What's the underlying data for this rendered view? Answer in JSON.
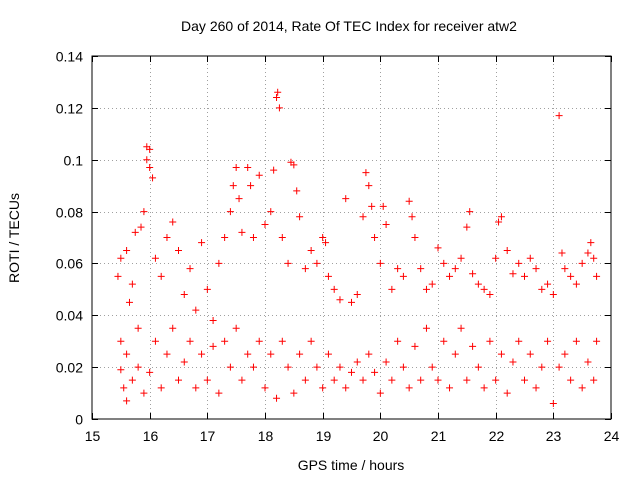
{
  "chart_data": {
    "type": "scatter",
    "title": "Day 260 of 2014, Rate Of TEC Index for receiver atw2",
    "xlabel": "GPS time / hours",
    "ylabel": "ROTI / TECUs",
    "xlim": [
      15,
      24
    ],
    "ylim": [
      0,
      0.14
    ],
    "x_ticks": [
      "15",
      "16",
      "17",
      "18",
      "19",
      "20",
      "21",
      "22",
      "23",
      "24"
    ],
    "y_ticks": [
      "0",
      "0.02",
      "0.04",
      "0.06",
      "0.08",
      "0.1",
      "0.12",
      "0.14"
    ],
    "grid": true,
    "marker": "+",
    "color": "#ff0000",
    "series": [
      {
        "name": "ROTI",
        "points": [
          [
            15.45,
            0.055
          ],
          [
            15.5,
            0.062
          ],
          [
            15.5,
            0.019
          ],
          [
            15.55,
            0.012
          ],
          [
            15.6,
            0.007
          ],
          [
            15.6,
            0.065
          ],
          [
            15.65,
            0.045
          ],
          [
            15.7,
            0.052
          ],
          [
            15.75,
            0.072
          ],
          [
            15.8,
            0.035
          ],
          [
            15.85,
            0.074
          ],
          [
            15.9,
            0.08
          ],
          [
            15.95,
            0.105
          ],
          [
            15.95,
            0.1
          ],
          [
            16.0,
            0.104
          ],
          [
            16.0,
            0.097
          ],
          [
            16.05,
            0.093
          ],
          [
            16.1,
            0.062
          ],
          [
            16.2,
            0.055
          ],
          [
            16.3,
            0.07
          ],
          [
            16.4,
            0.076
          ],
          [
            16.5,
            0.065
          ],
          [
            16.6,
            0.048
          ],
          [
            16.7,
            0.058
          ],
          [
            16.8,
            0.042
          ],
          [
            16.9,
            0.068
          ],
          [
            17.0,
            0.05
          ],
          [
            17.1,
            0.038
          ],
          [
            17.2,
            0.06
          ],
          [
            17.3,
            0.07
          ],
          [
            17.4,
            0.08
          ],
          [
            17.45,
            0.09
          ],
          [
            17.5,
            0.097
          ],
          [
            17.55,
            0.085
          ],
          [
            17.6,
            0.072
          ],
          [
            17.7,
            0.097
          ],
          [
            17.75,
            0.09
          ],
          [
            17.8,
            0.07
          ],
          [
            17.9,
            0.094
          ],
          [
            18.0,
            0.075
          ],
          [
            18.1,
            0.08
          ],
          [
            18.15,
            0.096
          ],
          [
            18.2,
            0.124
          ],
          [
            18.22,
            0.126
          ],
          [
            18.25,
            0.12
          ],
          [
            18.3,
            0.07
          ],
          [
            18.4,
            0.06
          ],
          [
            18.45,
            0.099
          ],
          [
            18.5,
            0.098
          ],
          [
            18.55,
            0.088
          ],
          [
            18.6,
            0.078
          ],
          [
            18.7,
            0.058
          ],
          [
            18.8,
            0.065
          ],
          [
            18.9,
            0.06
          ],
          [
            19.0,
            0.07
          ],
          [
            19.05,
            0.068
          ],
          [
            19.1,
            0.055
          ],
          [
            19.2,
            0.05
          ],
          [
            19.3,
            0.046
          ],
          [
            19.4,
            0.085
          ],
          [
            19.5,
            0.045
          ],
          [
            19.6,
            0.048
          ],
          [
            19.7,
            0.078
          ],
          [
            19.75,
            0.095
          ],
          [
            19.8,
            0.09
          ],
          [
            19.85,
            0.082
          ],
          [
            19.9,
            0.07
          ],
          [
            20.0,
            0.06
          ],
          [
            20.05,
            0.082
          ],
          [
            20.1,
            0.075
          ],
          [
            20.2,
            0.05
          ],
          [
            20.3,
            0.058
          ],
          [
            20.4,
            0.055
          ],
          [
            20.5,
            0.084
          ],
          [
            20.55,
            0.078
          ],
          [
            20.6,
            0.07
          ],
          [
            20.7,
            0.058
          ],
          [
            20.8,
            0.05
          ],
          [
            20.9,
            0.052
          ],
          [
            21.0,
            0.066
          ],
          [
            21.1,
            0.06
          ],
          [
            21.2,
            0.055
          ],
          [
            21.3,
            0.058
          ],
          [
            21.4,
            0.062
          ],
          [
            21.5,
            0.074
          ],
          [
            21.55,
            0.08
          ],
          [
            21.6,
            0.056
          ],
          [
            21.7,
            0.052
          ],
          [
            21.8,
            0.05
          ],
          [
            21.9,
            0.048
          ],
          [
            22.0,
            0.062
          ],
          [
            22.05,
            0.076
          ],
          [
            22.1,
            0.078
          ],
          [
            22.2,
            0.065
          ],
          [
            22.3,
            0.056
          ],
          [
            22.4,
            0.06
          ],
          [
            22.5,
            0.055
          ],
          [
            22.6,
            0.062
          ],
          [
            22.7,
            0.058
          ],
          [
            22.8,
            0.05
          ],
          [
            22.9,
            0.052
          ],
          [
            23.0,
            0.048
          ],
          [
            23.1,
            0.117
          ],
          [
            23.15,
            0.064
          ],
          [
            23.2,
            0.058
          ],
          [
            23.3,
            0.055
          ],
          [
            23.4,
            0.052
          ],
          [
            23.5,
            0.06
          ],
          [
            23.6,
            0.064
          ],
          [
            23.65,
            0.068
          ],
          [
            23.7,
            0.062
          ],
          [
            23.75,
            0.055
          ],
          [
            15.5,
            0.03
          ],
          [
            15.6,
            0.025
          ],
          [
            15.7,
            0.015
          ],
          [
            15.8,
            0.02
          ],
          [
            15.9,
            0.01
          ],
          [
            16.0,
            0.018
          ],
          [
            16.1,
            0.03
          ],
          [
            16.2,
            0.012
          ],
          [
            16.3,
            0.025
          ],
          [
            16.4,
            0.035
          ],
          [
            16.5,
            0.015
          ],
          [
            16.6,
            0.022
          ],
          [
            16.7,
            0.03
          ],
          [
            16.8,
            0.012
          ],
          [
            16.9,
            0.025
          ],
          [
            17.0,
            0.015
          ],
          [
            17.1,
            0.028
          ],
          [
            17.2,
            0.01
          ],
          [
            17.3,
            0.03
          ],
          [
            17.4,
            0.02
          ],
          [
            17.5,
            0.035
          ],
          [
            17.6,
            0.015
          ],
          [
            17.7,
            0.025
          ],
          [
            17.8,
            0.02
          ],
          [
            17.9,
            0.03
          ],
          [
            18.0,
            0.012
          ],
          [
            18.1,
            0.025
          ],
          [
            18.2,
            0.008
          ],
          [
            18.3,
            0.03
          ],
          [
            18.4,
            0.02
          ],
          [
            18.5,
            0.01
          ],
          [
            18.6,
            0.025
          ],
          [
            18.7,
            0.015
          ],
          [
            18.8,
            0.03
          ],
          [
            18.9,
            0.02
          ],
          [
            19.0,
            0.012
          ],
          [
            19.1,
            0.025
          ],
          [
            19.2,
            0.015
          ],
          [
            19.3,
            0.02
          ],
          [
            19.4,
            0.012
          ],
          [
            19.5,
            0.018
          ],
          [
            19.6,
            0.022
          ],
          [
            19.7,
            0.015
          ],
          [
            19.8,
            0.025
          ],
          [
            19.9,
            0.018
          ],
          [
            20.0,
            0.01
          ],
          [
            20.1,
            0.022
          ],
          [
            20.2,
            0.015
          ],
          [
            20.3,
            0.03
          ],
          [
            20.4,
            0.02
          ],
          [
            20.5,
            0.012
          ],
          [
            20.6,
            0.028
          ],
          [
            20.7,
            0.015
          ],
          [
            20.8,
            0.035
          ],
          [
            20.9,
            0.02
          ],
          [
            21.0,
            0.015
          ],
          [
            21.1,
            0.03
          ],
          [
            21.2,
            0.012
          ],
          [
            21.3,
            0.025
          ],
          [
            21.4,
            0.035
          ],
          [
            21.5,
            0.015
          ],
          [
            21.6,
            0.028
          ],
          [
            21.7,
            0.02
          ],
          [
            21.8,
            0.012
          ],
          [
            21.9,
            0.03
          ],
          [
            22.0,
            0.015
          ],
          [
            22.1,
            0.025
          ],
          [
            22.2,
            0.01
          ],
          [
            22.3,
            0.022
          ],
          [
            22.4,
            0.03
          ],
          [
            22.5,
            0.015
          ],
          [
            22.6,
            0.025
          ],
          [
            22.7,
            0.012
          ],
          [
            22.8,
            0.02
          ],
          [
            22.9,
            0.03
          ],
          [
            23.0,
            0.006
          ],
          [
            23.1,
            0.02
          ],
          [
            23.2,
            0.025
          ],
          [
            23.3,
            0.015
          ],
          [
            23.4,
            0.03
          ],
          [
            23.5,
            0.012
          ],
          [
            23.6,
            0.022
          ],
          [
            23.7,
            0.015
          ],
          [
            23.75,
            0.03
          ]
        ]
      }
    ]
  }
}
